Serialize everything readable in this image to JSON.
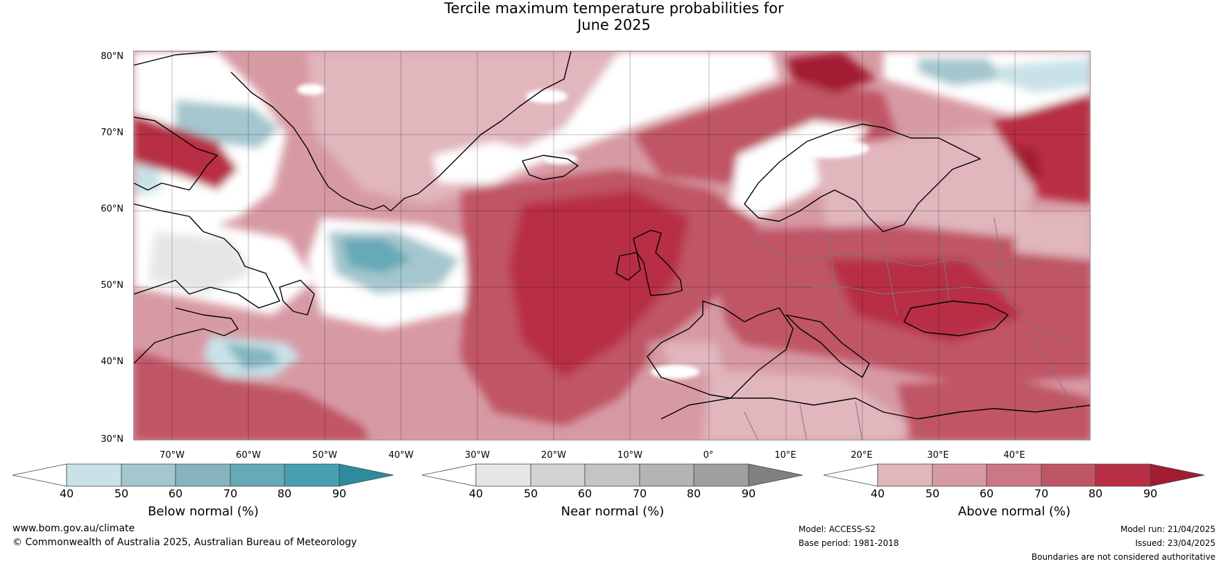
{
  "title": {
    "line1": "Tercile maximum temperature probabilities for",
    "line2": "June 2025"
  },
  "map": {
    "lat_labels": [
      "80°N",
      "70°N",
      "60°N",
      "50°N",
      "40°N",
      "30°N"
    ],
    "lon_labels": [
      "70°W",
      "60°W",
      "50°W",
      "40°W",
      "30°W",
      "20°W",
      "10°W",
      "0°",
      "10°E",
      "20°E",
      "30°E",
      "40°E"
    ],
    "colors": {
      "above": [
        "#e1b6bd",
        "#d79aa4",
        "#cc7783",
        "#c05565",
        "#b82e45",
        "#a21c33"
      ],
      "below": [
        "#c9e2e8",
        "#a4c6ce",
        "#86b5c0",
        "#66a9b7",
        "#479fb1",
        "#2e8a9e"
      ],
      "near": [
        "#e6e6e6",
        "#d3d3d3",
        "#c4c4c4",
        "#b4b4b4",
        "#9f9f9f",
        "#808080"
      ],
      "coast": "#000000",
      "borders": "#7a7a7a"
    }
  },
  "colorbars": [
    {
      "label": "Below normal (%)",
      "ticks": [
        "40",
        "50",
        "60",
        "70",
        "80",
        "90"
      ],
      "colors": [
        "#ffffff",
        "#c9e2e8",
        "#a4c6ce",
        "#86b5c0",
        "#66a9b7",
        "#479fb1",
        "#2e8a9e"
      ]
    },
    {
      "label": "Near normal (%)",
      "ticks": [
        "40",
        "50",
        "60",
        "70",
        "80",
        "90"
      ],
      "colors": [
        "#ffffff",
        "#e6e6e6",
        "#d3d3d3",
        "#c4c4c4",
        "#b4b4b4",
        "#9f9f9f",
        "#808080"
      ]
    },
    {
      "label": "Above normal (%)",
      "ticks": [
        "40",
        "50",
        "60",
        "70",
        "80",
        "90"
      ],
      "colors": [
        "#ffffff",
        "#e1b6bd",
        "#d79aa4",
        "#cc7783",
        "#c05565",
        "#b82e45",
        "#a21c33"
      ]
    }
  ],
  "footer": {
    "website": "www.bom.gov.au/climate",
    "copyright": "© Commonwealth of Australia 2025, Australian Bureau of Meteorology",
    "model": "Model: ACCESS-S2",
    "base_period": "Base period: 1981-2018",
    "model_run": "Model run: 21/04/2025",
    "issued": "Issued: 23/04/2025",
    "disclaimer": "Boundaries are not considered authoritative"
  }
}
